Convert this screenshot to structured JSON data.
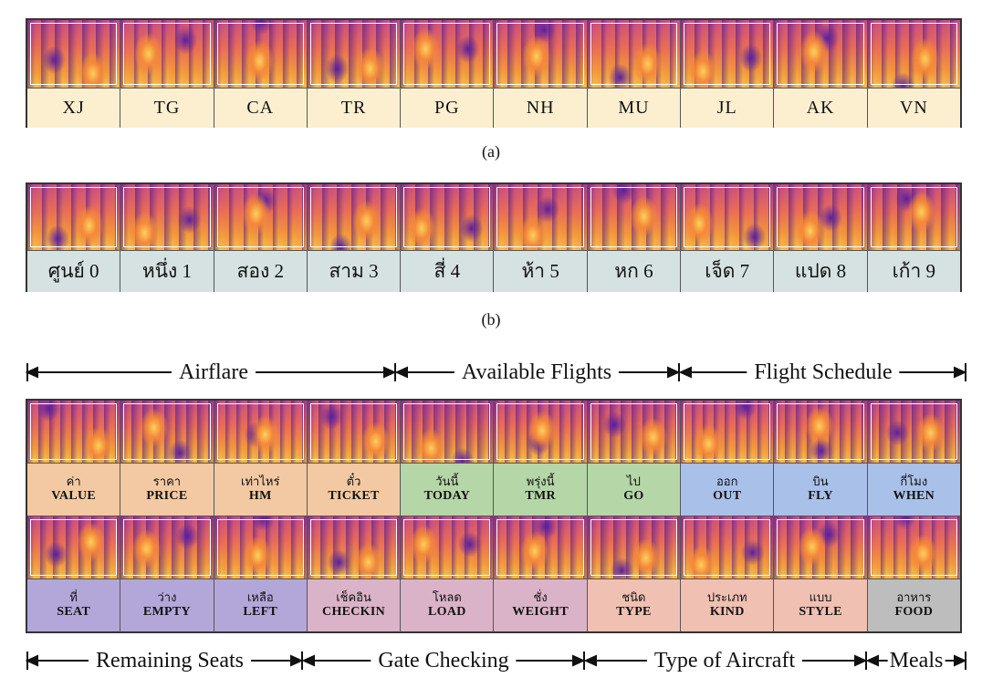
{
  "panel_a": {
    "labels": [
      "XJ",
      "TG",
      "CA",
      "TR",
      "PG",
      "NH",
      "MU",
      "JL",
      "AK",
      "VN"
    ],
    "caption": "(a)"
  },
  "panel_b": {
    "labels": [
      "ศูนย์ 0",
      "หนึ่ง 1",
      "สอง 2",
      "สาม 3",
      "สี่ 4",
      "ห้า 5",
      "หก 6",
      "เจ็ด 7",
      "แปด 8",
      "เก้า 9"
    ],
    "caption": "(b)"
  },
  "panel_c": {
    "top_groups": [
      "Airflare",
      "Available Flights",
      "Flight Schedule"
    ],
    "bottom_groups": [
      "Remaining Seats",
      "Gate Checking",
      "Type of Aircraft",
      "Meals"
    ],
    "row1": [
      {
        "thai": "ค่า",
        "eng": "VALUE",
        "color": "#f2c9a2"
      },
      {
        "thai": "ราคา",
        "eng": "PRICE",
        "color": "#f2c9a2"
      },
      {
        "thai": "เท่าไหร่",
        "eng": "HM",
        "color": "#f2c9a2"
      },
      {
        "thai": "ตั๋ว",
        "eng": "TICKET",
        "color": "#f2c9a2"
      },
      {
        "thai": "วันนี้",
        "eng": "TODAY",
        "color": "#b5d6a7"
      },
      {
        "thai": "พรุ่งนี้",
        "eng": "TMR",
        "color": "#b5d6a7"
      },
      {
        "thai": "ไป",
        "eng": "GO",
        "color": "#b5d6a7"
      },
      {
        "thai": "ออก",
        "eng": "OUT",
        "color": "#a9c0e8"
      },
      {
        "thai": "บิน",
        "eng": "FLY",
        "color": "#a9c0e8"
      },
      {
        "thai": "กี่โมง",
        "eng": "WHEN",
        "color": "#a9c0e8"
      }
    ],
    "row2": [
      {
        "thai": "ที่",
        "eng": "SEAT",
        "color": "#b3a7d9"
      },
      {
        "thai": "ว่าง",
        "eng": "EMPTY",
        "color": "#b3a7d9"
      },
      {
        "thai": "เหลือ",
        "eng": "LEFT",
        "color": "#b3a7d9"
      },
      {
        "thai": "เช็คอิน",
        "eng": "CHECKIN",
        "color": "#dbb3c8"
      },
      {
        "thai": "โหลด",
        "eng": "LOAD",
        "color": "#dbb3c8"
      },
      {
        "thai": "ชั่ง",
        "eng": "WEIGHT",
        "color": "#dbb3c8"
      },
      {
        "thai": "ชนิด",
        "eng": "TYPE",
        "color": "#f0c0b2"
      },
      {
        "thai": "ประเภท",
        "eng": "KIND",
        "color": "#f0c0b2"
      },
      {
        "thai": "แบบ",
        "eng": "STYLE",
        "color": "#f0c0b2"
      },
      {
        "thai": "อาหาร",
        "eng": "FOOD",
        "color": "#bdbdbd"
      }
    ]
  }
}
